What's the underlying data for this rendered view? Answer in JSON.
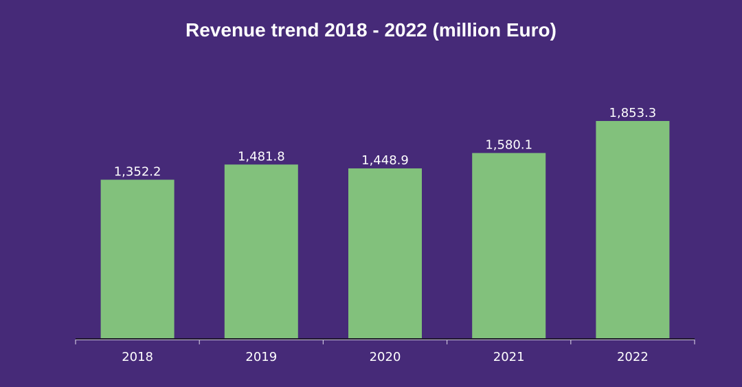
{
  "chart_data": {
    "type": "bar",
    "title": "Revenue trend 2018 - 2022 (million Euro)",
    "categories": [
      "2018",
      "2019",
      "2020",
      "2021",
      "2022"
    ],
    "values": [
      1352.2,
      1481.8,
      1448.9,
      1580.1,
      1853.3
    ],
    "data_labels": [
      "1,352.2",
      "1,481.8",
      "1,448.9",
      "1,580.1",
      "1,853.3"
    ],
    "xlabel": "",
    "ylabel": "",
    "ylim": [
      0,
      2000
    ],
    "grid": false,
    "legend": "none",
    "colors": {
      "background": "#462a78",
      "bar": "#82c17c",
      "text": "#ffffff",
      "axis": "#c8c0d8"
    }
  }
}
